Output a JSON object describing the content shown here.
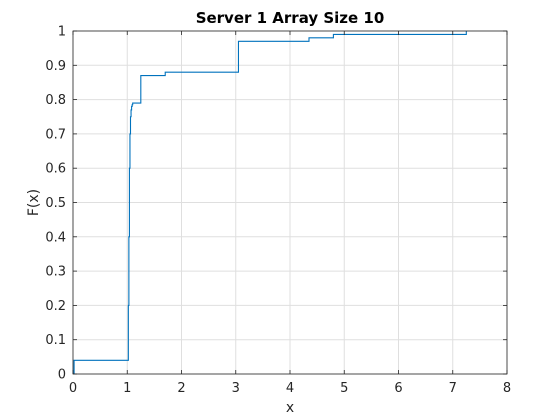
{
  "chart_data": {
    "type": "line",
    "title": "Server 1 Array Size 10",
    "xlabel": "x",
    "ylabel": "F(x)",
    "xlim": [
      0,
      8
    ],
    "ylim": [
      0,
      1
    ],
    "xticks": [
      0,
      1,
      2,
      3,
      4,
      5,
      6,
      7,
      8
    ],
    "yticks": [
      0,
      0.1,
      0.2,
      0.3,
      0.4,
      0.5,
      0.6,
      0.7,
      0.8,
      0.9,
      1
    ],
    "grid": true,
    "legend": "none",
    "step": true,
    "series": [
      {
        "color": "#0072bd",
        "x": [
          0.02,
          0.02,
          1.0,
          1.02,
          1.03,
          1.04,
          1.05,
          1.06,
          1.07,
          1.08,
          1.09,
          1.1,
          1.25,
          1.7,
          3.05,
          4.35,
          4.8,
          7.25
        ],
        "y": [
          0,
          0.04,
          0.04,
          0.2,
          0.4,
          0.6,
          0.7,
          0.75,
          0.77,
          0.78,
          0.785,
          0.79,
          0.87,
          0.88,
          0.97,
          0.98,
          0.99,
          1.0
        ]
      }
    ]
  }
}
